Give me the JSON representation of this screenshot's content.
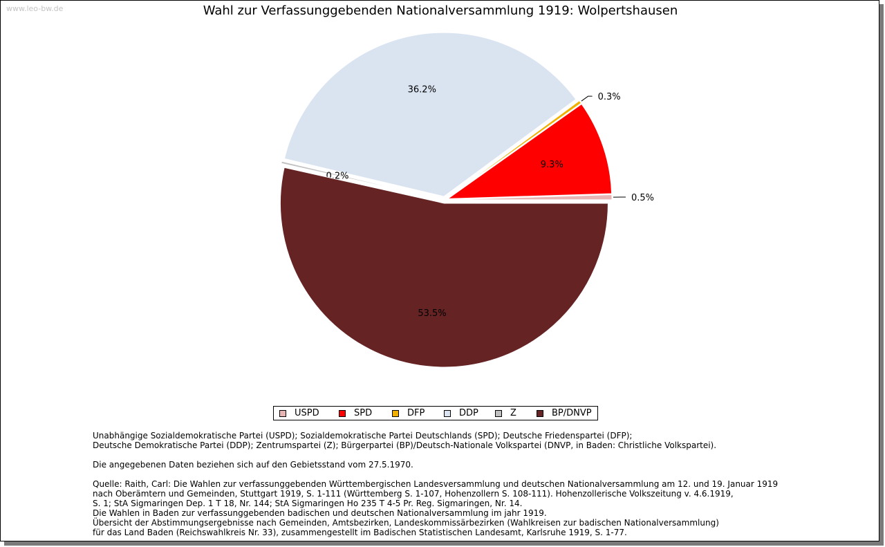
{
  "watermark": "www.leo-bw.de",
  "chart_data": {
    "type": "pie",
    "title": "Wahl zur Verfassunggebenden Nationalversammlung 1919: Wolpertshausen",
    "series": [
      {
        "name": "USPD",
        "value": 0.5,
        "label": "0.5%",
        "color": "#e8b4b4"
      },
      {
        "name": "SPD",
        "value": 9.3,
        "label": "9.3%",
        "color": "#ff0000"
      },
      {
        "name": "DFP",
        "value": 0.3,
        "label": "0.3%",
        "color": "#f0b000"
      },
      {
        "name": "DDP",
        "value": 36.2,
        "label": "36.2%",
        "color": "#dae4f1"
      },
      {
        "name": "Z",
        "value": 0.2,
        "label": "0.2%",
        "color": "#c0c0c0"
      },
      {
        "name": "BP/DNVP",
        "value": 53.5,
        "label": "53.5%",
        "color": "#652324"
      }
    ],
    "legend_position": "bottom"
  },
  "notes": {
    "parties_1": "Unabhängige Sozialdemokratische Partei (USPD); Sozialdemokratische Partei Deutschlands (SPD); Deutsche Friedenspartei (DFP);",
    "parties_2": "Deutsche Demokratische Partei (DDP); Zentrumspartei (Z); Bürgerpartei (BP)/Deutsch-Nationale Volkspartei (DNVP, in Baden: Christliche Volkspartei).",
    "territory": "Die angegebenen Daten beziehen sich auf den Gebietsstand vom 27.5.1970.",
    "source_1": "Quelle: Raith, Carl: Die Wahlen zur verfassunggebenden Württembergischen Landesversammlung und deutschen Nationalversammlung am 12. und 19. Januar 1919",
    "source_2": "nach Oberämtern und Gemeinden, Stuttgart 1919, S. 1-111 (Württemberg S. 1-107, Hohenzollern S. 108-111). Hohenzollerische Volkszeitung v. 4.6.1919,",
    "source_3": "S. 1; StA Sigmaringen Dep. 1 T 18, Nr. 144; StA Sigmaringen Ho 235 T 4-5 Pr. Reg. Sigmaringen, Nr. 14.",
    "source_4": "Die Wahlen in Baden zur verfassunggebenden badischen und deutschen Nationalversammlung im jahr 1919.",
    "source_5": "Übersicht der Abstimmungsergebnisse nach Gemeinden, Amtsbezirken, Landeskommissärbezirken (Wahlkreisen zur badischen Nationalversammlung)",
    "source_6": "für das Land Baden (Reichswahlkreis Nr. 33), zusammengestellt im Badischen Statistischen Landesamt, Karlsruhe 1919, S. 1-77."
  }
}
